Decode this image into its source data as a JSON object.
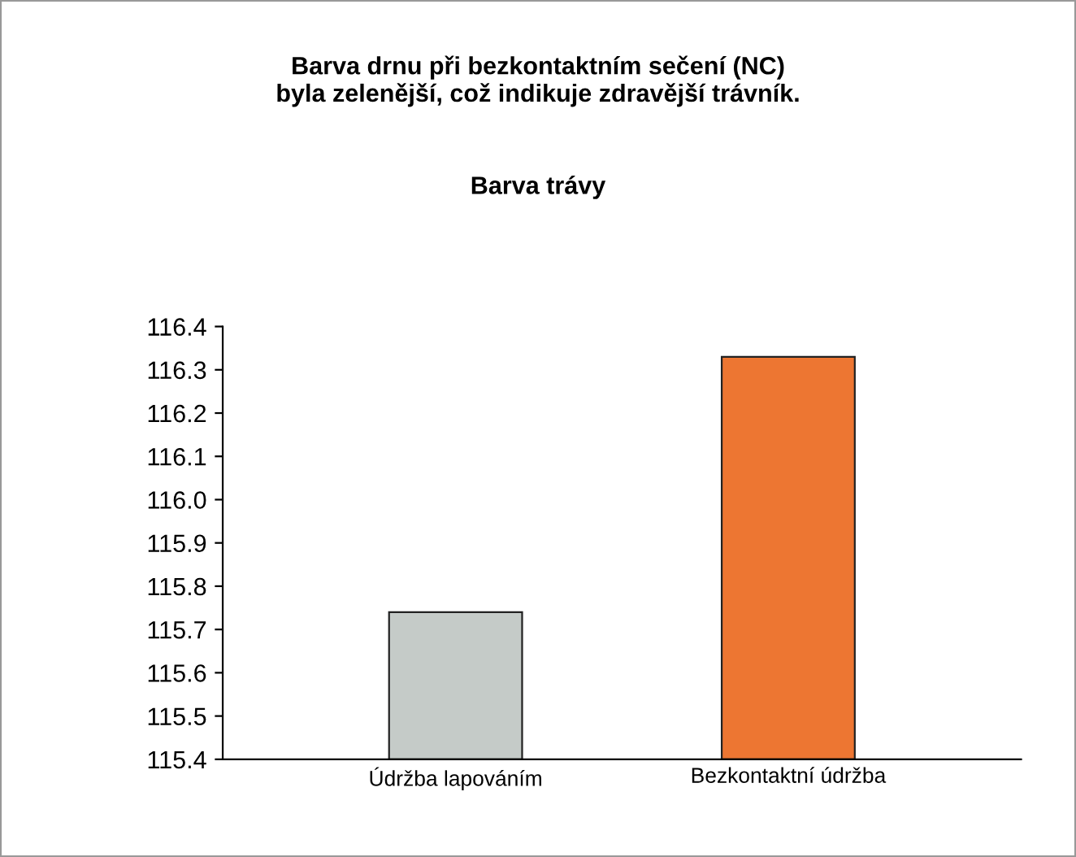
{
  "chart_data": {
    "type": "bar",
    "title": "Barva drnu při bezkontaktním sečení (NC)\nbyla zelenější, což indikuje zdravější trávník.",
    "subtitle": "Barva trávy",
    "categories": [
      "Údržba lapováním",
      "Bezkontaktní údržba"
    ],
    "values": [
      115.74,
      116.33
    ],
    "colors": [
      "#c5cbc8",
      "#ed7632"
    ],
    "ylim": [
      115.4,
      116.4
    ],
    "yticks": [
      {
        "value": 115.4,
        "label": "115.4"
      },
      {
        "value": 115.5,
        "label": "115.5"
      },
      {
        "value": 115.6,
        "label": "115.6"
      },
      {
        "value": 115.7,
        "label": "115.7"
      },
      {
        "value": 115.8,
        "label": "115.8"
      },
      {
        "value": 115.9,
        "label": "115.9"
      },
      {
        "value": 116.0,
        "label": "116.0"
      },
      {
        "value": 116.1,
        "label": "116.1"
      },
      {
        "value": 116.2,
        "label": "116.2"
      },
      {
        "value": 116.3,
        "label": "116.3"
      },
      {
        "value": 116.4,
        "label": "116.4"
      }
    ],
    "grid": false,
    "legend": false
  }
}
